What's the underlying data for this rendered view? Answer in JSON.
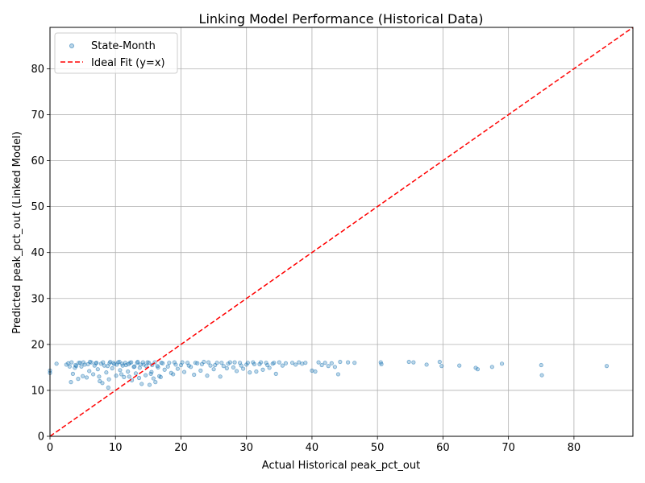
{
  "chart_data": {
    "type": "scatter",
    "title": "Linking Model Performance (Historical Data)",
    "xlabel": "Actual Historical peak_pct_out",
    "ylabel": "Predicted peak_pct_out (Linked Model)",
    "xlim": [
      0,
      89
    ],
    "ylim": [
      0,
      89
    ],
    "xticks": [
      0,
      10,
      20,
      30,
      40,
      50,
      60,
      70,
      80
    ],
    "yticks": [
      0,
      10,
      20,
      30,
      40,
      50,
      60,
      70,
      80
    ],
    "grid": true,
    "legend_position": "top-left",
    "colors": {
      "scatter": "#1f77b4",
      "ideal": "#ff0000"
    },
    "series": [
      {
        "name": "State-Month",
        "kind": "scatter",
        "points": [
          [
            0.0,
            13.8
          ],
          [
            0.0,
            14.3
          ],
          [
            1.0,
            15.8
          ],
          [
            2.5,
            15.6
          ],
          [
            3.0,
            15.2
          ],
          [
            3.2,
            11.8
          ],
          [
            3.5,
            13.6
          ],
          [
            3.8,
            14.9
          ],
          [
            4.0,
            15.3
          ],
          [
            4.3,
            12.5
          ],
          [
            4.6,
            16.0
          ],
          [
            5.0,
            13.1
          ],
          [
            5.3,
            15.6
          ],
          [
            5.6,
            12.8
          ],
          [
            6.0,
            14.2
          ],
          [
            6.3,
            16.1
          ],
          [
            6.6,
            13.5
          ],
          [
            7.0,
            15.9
          ],
          [
            7.3,
            14.6
          ],
          [
            7.6,
            12.0
          ],
          [
            8.0,
            11.6
          ],
          [
            8.3,
            15.4
          ],
          [
            8.6,
            13.9
          ],
          [
            8.9,
            10.6
          ],
          [
            9.2,
            16.2
          ],
          [
            9.5,
            14.8
          ],
          [
            9.8,
            15.7
          ],
          [
            10.1,
            13.2
          ],
          [
            10.4,
            16.1
          ],
          [
            10.7,
            14.4
          ],
          [
            11.0,
            15.8
          ],
          [
            11.3,
            12.9
          ],
          [
            11.6,
            15.5
          ],
          [
            11.9,
            14.1
          ],
          [
            12.2,
            16.0
          ],
          [
            12.5,
            12.2
          ],
          [
            12.8,
            15.1
          ],
          [
            13.1,
            13.7
          ],
          [
            13.4,
            16.2
          ],
          [
            13.7,
            14.9
          ],
          [
            14.0,
            11.4
          ],
          [
            14.3,
            15.6
          ],
          [
            14.6,
            13.3
          ],
          [
            14.9,
            16.1
          ],
          [
            15.2,
            11.2
          ],
          [
            15.5,
            14.0
          ],
          [
            15.8,
            12.6
          ],
          [
            16.1,
            11.8
          ],
          [
            16.4,
            15.3
          ],
          [
            16.7,
            13.1
          ],
          [
            17.0,
            16.0
          ],
          [
            17.5,
            14.5
          ],
          [
            18.0,
            15.2
          ],
          [
            18.5,
            13.8
          ],
          [
            19.0,
            16.1
          ],
          [
            19.5,
            14.7
          ],
          [
            20.0,
            15.5
          ],
          [
            20.5,
            14.0
          ],
          [
            21.0,
            16.0
          ],
          [
            21.5,
            15.1
          ],
          [
            22.0,
            13.4
          ],
          [
            22.5,
            15.9
          ],
          [
            23.0,
            14.3
          ],
          [
            23.5,
            16.2
          ],
          [
            24.0,
            13.2
          ],
          [
            24.5,
            15.4
          ],
          [
            25.0,
            14.6
          ],
          [
            25.5,
            16.0
          ],
          [
            26.0,
            13.0
          ],
          [
            26.5,
            15.3
          ],
          [
            27.0,
            14.8
          ],
          [
            27.5,
            16.1
          ],
          [
            28.0,
            15.0
          ],
          [
            28.5,
            14.2
          ],
          [
            29.0,
            16.0
          ],
          [
            29.5,
            14.7
          ],
          [
            30.0,
            15.6
          ],
          [
            30.5,
            13.9
          ],
          [
            31.0,
            16.1
          ],
          [
            31.5,
            14.1
          ],
          [
            32.0,
            15.7
          ],
          [
            32.5,
            14.5
          ],
          [
            33.0,
            16.0
          ],
          [
            33.5,
            14.9
          ],
          [
            34.0,
            15.8
          ],
          [
            34.5,
            13.6
          ],
          [
            35.0,
            16.1
          ],
          [
            35.5,
            15.4
          ],
          [
            36.0,
            15.9
          ],
          [
            37.0,
            16.0
          ],
          [
            37.5,
            15.6
          ],
          [
            38.0,
            16.1
          ],
          [
            38.5,
            15.8
          ],
          [
            39.0,
            16.0
          ],
          [
            40.0,
            14.3
          ],
          [
            40.5,
            14.1
          ],
          [
            41.0,
            16.1
          ],
          [
            41.5,
            15.5
          ],
          [
            42.0,
            16.0
          ],
          [
            42.5,
            15.3
          ],
          [
            43.0,
            15.9
          ],
          [
            43.5,
            15.1
          ],
          [
            44.0,
            13.5
          ],
          [
            44.3,
            16.2
          ],
          [
            45.5,
            16.1
          ],
          [
            46.5,
            16.0
          ],
          [
            50.5,
            16.1
          ],
          [
            50.6,
            15.7
          ],
          [
            54.8,
            16.2
          ],
          [
            55.5,
            16.1
          ],
          [
            57.5,
            15.6
          ],
          [
            59.5,
            16.2
          ],
          [
            59.8,
            15.3
          ],
          [
            62.5,
            15.4
          ],
          [
            65.0,
            14.9
          ],
          [
            65.3,
            14.6
          ],
          [
            67.5,
            15.1
          ],
          [
            69.0,
            15.8
          ],
          [
            75.0,
            15.5
          ],
          [
            75.1,
            13.3
          ],
          [
            85.0,
            15.3
          ],
          [
            2.8,
            15.9
          ],
          [
            3.3,
            16.1
          ],
          [
            3.9,
            15.5
          ],
          [
            4.4,
            16.0
          ],
          [
            4.8,
            15.2
          ],
          [
            5.1,
            16.1
          ],
          [
            5.8,
            15.7
          ],
          [
            6.1,
            16.2
          ],
          [
            6.8,
            15.4
          ],
          [
            7.1,
            16.0
          ],
          [
            7.8,
            15.8
          ],
          [
            8.1,
            16.1
          ],
          [
            8.8,
            15.3
          ],
          [
            9.1,
            15.9
          ],
          [
            9.7,
            16.0
          ],
          [
            10.2,
            15.6
          ],
          [
            10.6,
            16.2
          ],
          [
            11.1,
            15.4
          ],
          [
            11.5,
            16.0
          ],
          [
            12.0,
            15.7
          ],
          [
            12.4,
            16.1
          ],
          [
            12.9,
            15.2
          ],
          [
            13.3,
            16.0
          ],
          [
            13.8,
            15.6
          ],
          [
            14.2,
            16.1
          ],
          [
            14.7,
            15.3
          ],
          [
            15.1,
            16.0
          ],
          [
            15.6,
            15.5
          ],
          [
            16.0,
            16.1
          ],
          [
            16.5,
            15.0
          ],
          [
            17.2,
            15.9
          ],
          [
            18.2,
            16.0
          ],
          [
            19.2,
            15.6
          ],
          [
            20.2,
            16.1
          ],
          [
            21.2,
            15.4
          ],
          [
            22.2,
            16.0
          ],
          [
            23.2,
            15.7
          ],
          [
            24.2,
            16.1
          ],
          [
            25.2,
            15.5
          ],
          [
            26.2,
            16.0
          ],
          [
            27.2,
            15.8
          ],
          [
            28.2,
            16.1
          ],
          [
            29.2,
            15.4
          ],
          [
            30.2,
            16.0
          ],
          [
            31.2,
            15.7
          ],
          [
            32.2,
            16.1
          ],
          [
            33.2,
            15.5
          ],
          [
            34.2,
            16.0
          ],
          [
            7.5,
            13.0
          ],
          [
            9.0,
            12.4
          ],
          [
            10.9,
            13.5
          ],
          [
            12.1,
            13.0
          ],
          [
            13.6,
            12.7
          ],
          [
            15.4,
            13.6
          ],
          [
            16.9,
            12.9
          ],
          [
            18.8,
            13.5
          ]
        ]
      },
      {
        "name": "Ideal Fit (y=x)",
        "kind": "line",
        "points": [
          [
            0,
            0
          ],
          [
            89,
            89
          ]
        ]
      }
    ]
  }
}
